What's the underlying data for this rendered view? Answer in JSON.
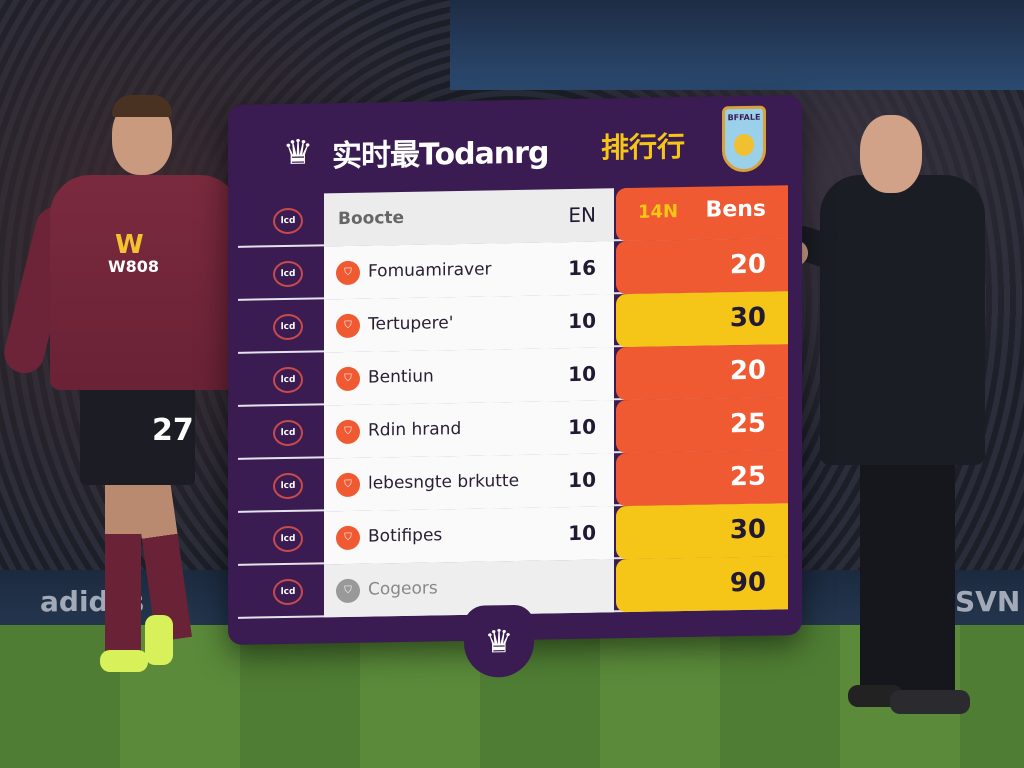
{
  "colors": {
    "board": "#3a1c52",
    "red": "#f05a33",
    "yellow": "#f5c518"
  },
  "player": {
    "sponsor_logo": "W",
    "sponsor": "W808",
    "number": "27"
  },
  "board": {
    "title": "实时最Todanrg",
    "subtitle": "排行行",
    "crest_text": "BFFALE",
    "header": {
      "rank": "lcd",
      "team": "Boocte",
      "played": "EN",
      "pts_label_left": "14N",
      "pts_label": "Bens"
    },
    "rows": [
      {
        "rank": "lcd",
        "team": "Fomuamiraver",
        "played": "16",
        "points": "20",
        "color": "red"
      },
      {
        "rank": "lcd",
        "team": "Tertupere'",
        "played": "10",
        "points": "30",
        "color": "yellow"
      },
      {
        "rank": "lcd",
        "team": "Bentiun",
        "played": "10",
        "points": "20",
        "color": "red"
      },
      {
        "rank": "lcd",
        "team": "Rdin hrand",
        "played": "10",
        "points": "25",
        "color": "red"
      },
      {
        "rank": "lcd",
        "team": "lebesngte brkutte",
        "played": "10",
        "points": "25",
        "color": "red"
      },
      {
        "rank": "lcd",
        "team": "Botifipes",
        "played": "10",
        "points": "30",
        "color": "yellow"
      },
      {
        "rank": "lcd",
        "team": "Cogeors",
        "played": "",
        "points": "90",
        "color": "yellow"
      }
    ]
  },
  "ads": [
    "adidas",
    "SVN"
  ]
}
